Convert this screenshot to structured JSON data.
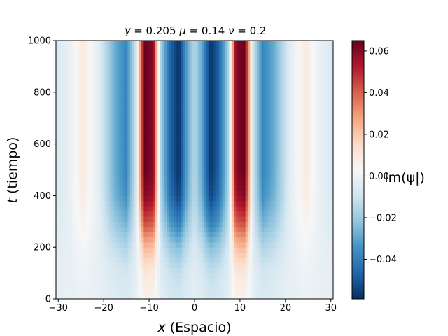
{
  "chart_data": {
    "type": "heatmap",
    "title": "γ = 0.205  μ = 0.14  ν = 0.2",
    "title_parts": [
      {
        "sym": "γ",
        "val": " = 0.205 "
      },
      {
        "sym": "μ",
        "val": " = 0.14 "
      },
      {
        "sym": "ν",
        "val": " = 0.2"
      }
    ],
    "xlabel_var": "x",
    "xlabel_text": " (Espacio)",
    "ylabel_var": "t",
    "ylabel_text": " (tiempo)",
    "colorbar_label": "Im(ψ|)",
    "xlim": [
      -30.5,
      30.5
    ],
    "ylim": [
      0,
      1000
    ],
    "xticks": [
      -30,
      -20,
      -10,
      0,
      10,
      20,
      30
    ],
    "xtick_labels": [
      "−30",
      "−20",
      "−10",
      "0",
      "10",
      "20",
      "30"
    ],
    "yticks": [
      0,
      200,
      400,
      600,
      800,
      1000
    ],
    "ytick_labels": [
      "0",
      "200",
      "400",
      "600",
      "800",
      "1000"
    ],
    "colorbar_range": [
      -0.059,
      0.065
    ],
    "colorbar_ticks": [
      -0.04,
      -0.02,
      0.0,
      0.02,
      0.04,
      0.06
    ],
    "colorbar_tick_labels": [
      "−0.04",
      "−0.02",
      "0.00",
      "0.02",
      "0.04",
      "0.06"
    ],
    "colormap": "RdBu_r",
    "pattern_profile": {
      "x": [
        -30,
        -27.5,
        -24.5,
        -21,
        -17.5,
        -15,
        -13,
        -11,
        -9,
        -7.5,
        -5.5,
        -3.5,
        -1.5,
        0,
        1.5,
        3.5,
        5.5,
        7.5,
        9,
        11,
        13,
        15,
        17.5,
        21,
        24.5,
        27.5,
        30
      ],
      "im_psi": [
        -0.006,
        -0.002,
        0.009,
        -0.004,
        -0.028,
        -0.038,
        -0.012,
        0.065,
        0.06,
        -0.015,
        -0.045,
        -0.059,
        -0.028,
        -0.015,
        -0.028,
        -0.059,
        -0.045,
        -0.015,
        0.06,
        0.065,
        -0.012,
        -0.038,
        -0.028,
        -0.004,
        0.009,
        -0.002,
        -0.006
      ]
    },
    "growth_time_profile": {
      "t": [
        0,
        100,
        200,
        300,
        400,
        500,
        1000
      ],
      "amplitude_fraction": [
        0.12,
        0.18,
        0.38,
        0.7,
        0.93,
        1.0,
        1.0
      ]
    }
  }
}
